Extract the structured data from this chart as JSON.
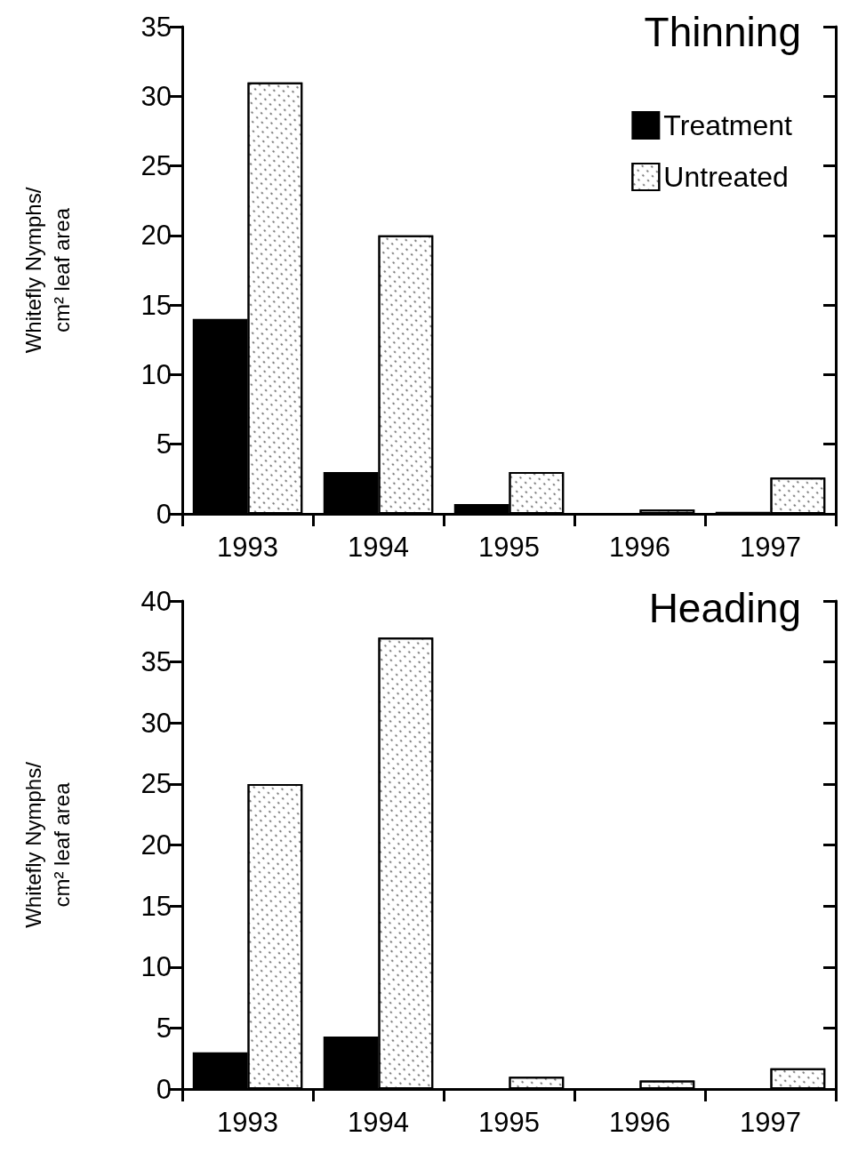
{
  "chart_data": [
    {
      "type": "bar",
      "title": "Thinning",
      "ylabel": "Whitefly Nymphs/\ncm² leaf area",
      "categories": [
        "1993",
        "1994",
        "1995",
        "1996",
        "1997"
      ],
      "series": [
        {
          "name": "Treatment",
          "color": "#000000",
          "values": [
            14,
            3,
            0.7,
            0,
            0.15
          ]
        },
        {
          "name": "Untreated",
          "color": "#ffffff",
          "values": [
            31,
            20,
            3,
            0.3,
            2.6
          ]
        }
      ],
      "ylim": [
        0,
        35
      ],
      "yticks": [
        0,
        5,
        10,
        15,
        20,
        25,
        30,
        35
      ],
      "grid": false,
      "legend": "top right"
    },
    {
      "type": "bar",
      "title": "Heading",
      "ylabel": "Whitefly Nymphs/\ncm² leaf area",
      "categories": [
        "1993",
        "1994",
        "1995",
        "1996",
        "1997"
      ],
      "series": [
        {
          "color": "#000000",
          "values": [
            3,
            4.3,
            0,
            0,
            0
          ]
        },
        {
          "color": "#ffffff",
          "values": [
            25,
            37,
            1,
            0.7,
            1.7
          ]
        }
      ],
      "ylim": [
        0,
        40
      ],
      "yticks": [
        0,
        5,
        10,
        15,
        20,
        25,
        30,
        35,
        40
      ],
      "grid": false
    }
  ]
}
